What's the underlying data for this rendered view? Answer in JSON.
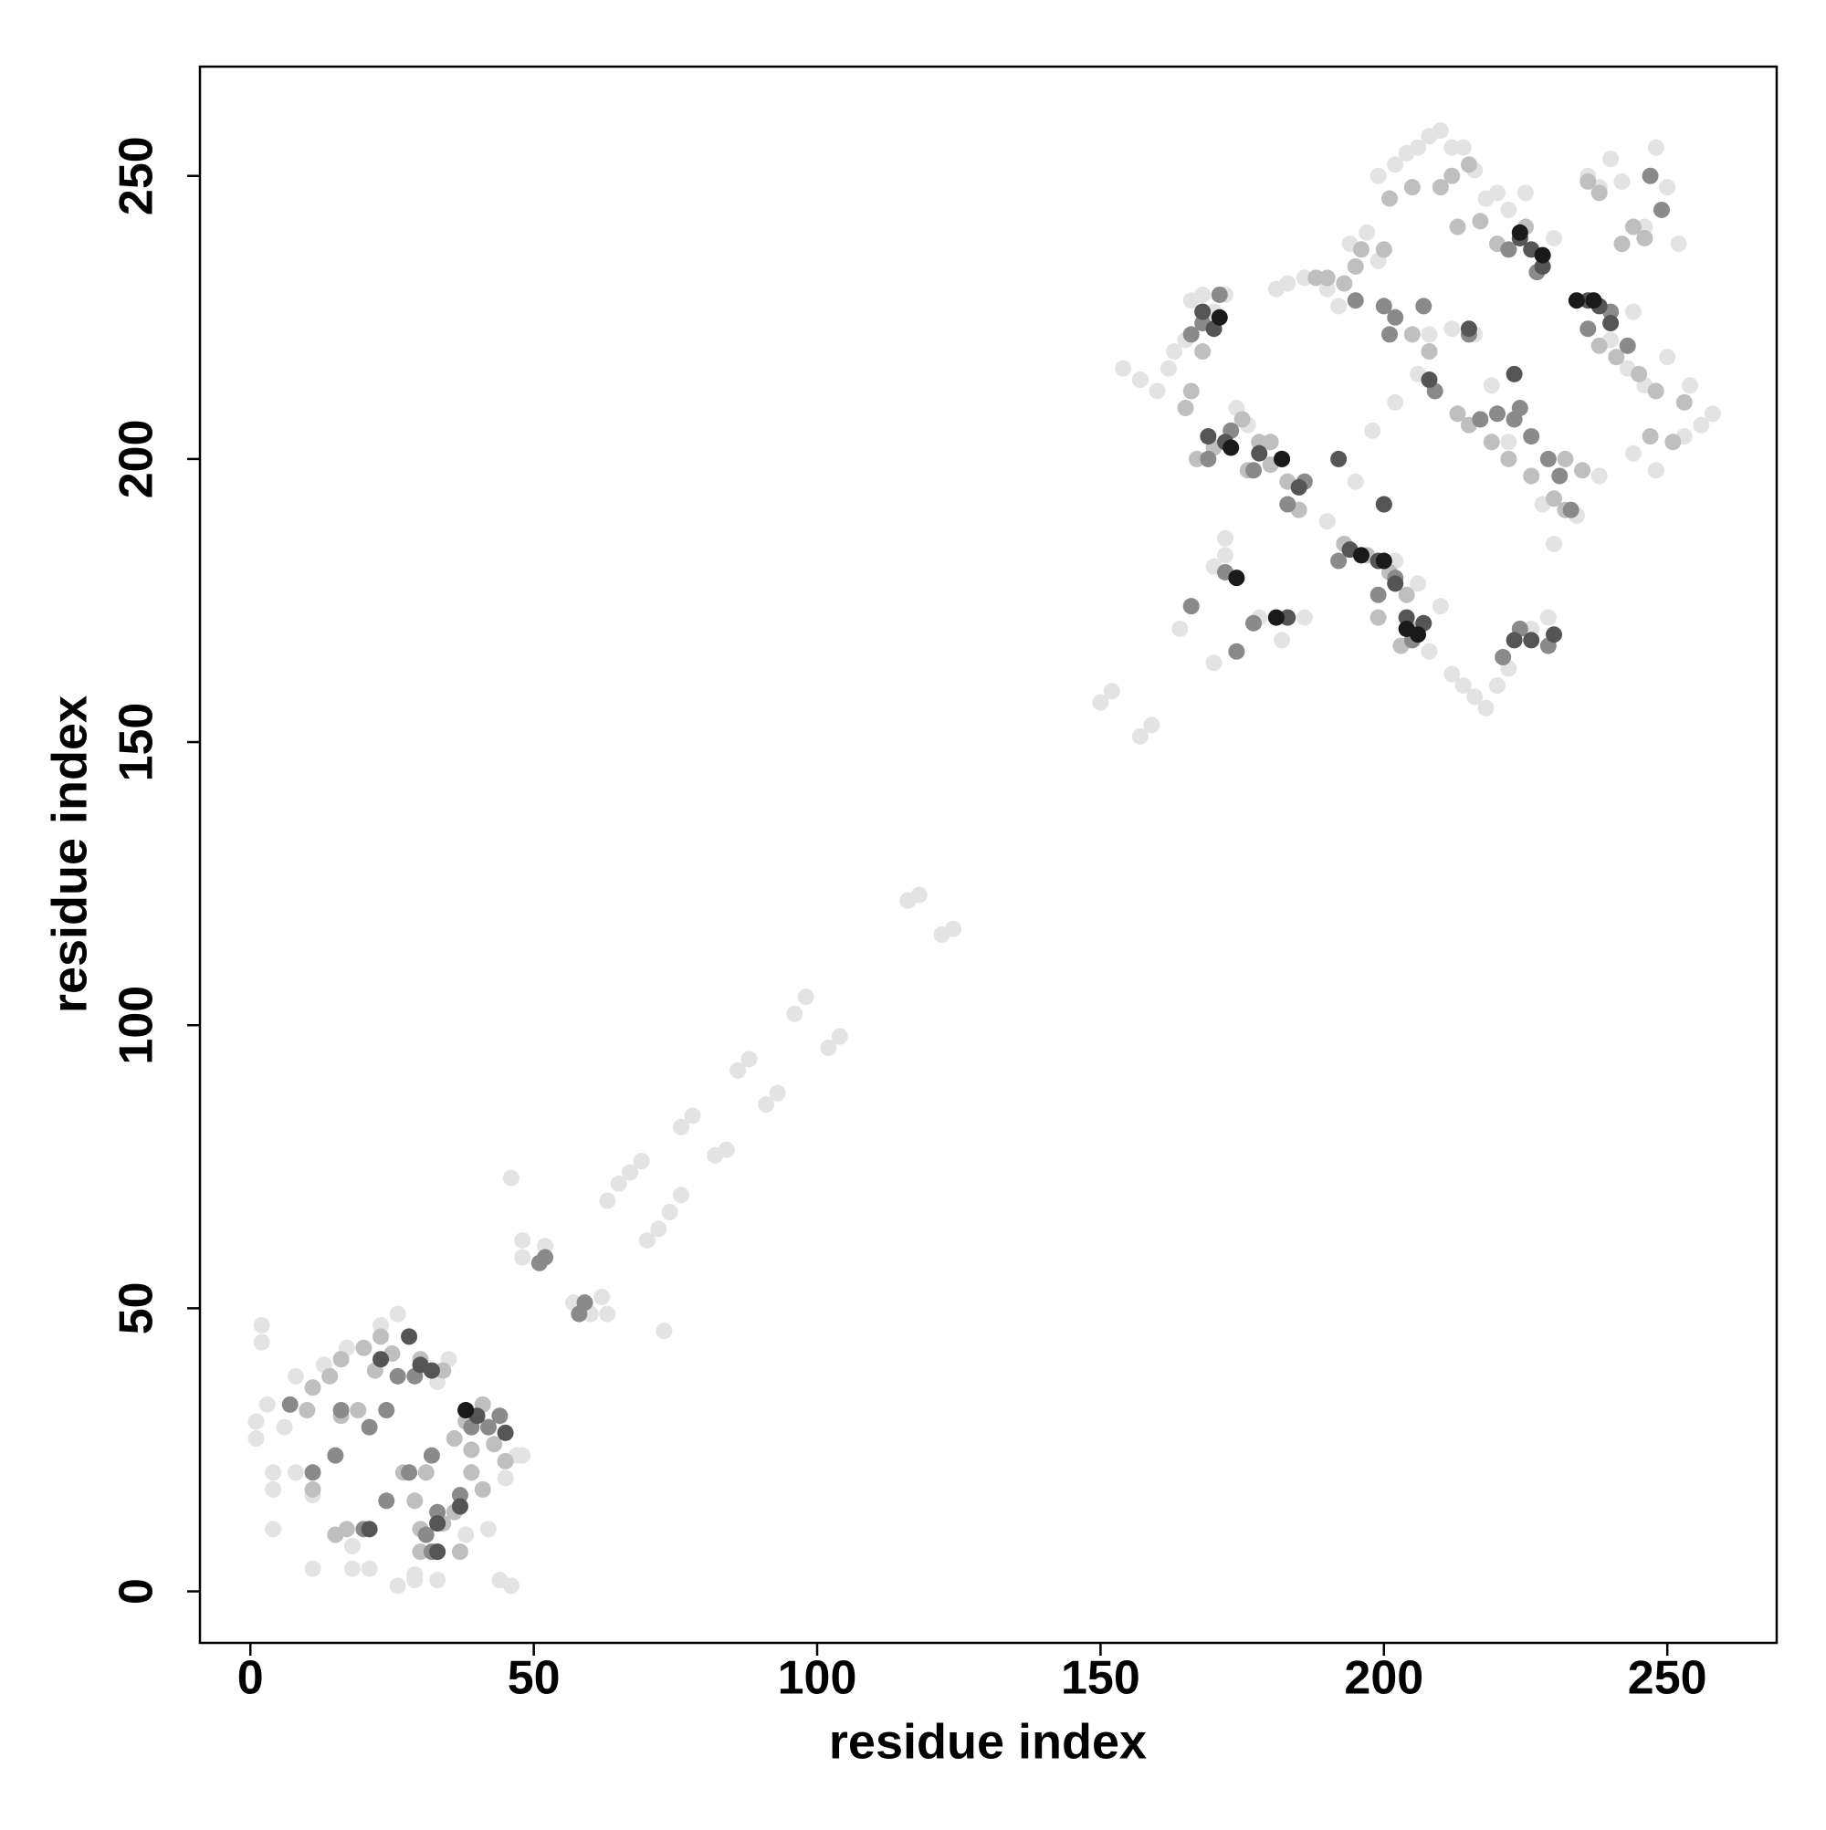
{
  "chart_data": {
    "type": "scatter",
    "xlabel": "residue index",
    "ylabel": "residue index",
    "xlim": [
      -8.9,
      269.3
    ],
    "ylim": [
      -9.1,
      269.3
    ],
    "xticks": [
      0,
      50,
      100,
      150,
      200,
      250
    ],
    "yticks": [
      0,
      50,
      100,
      150,
      200,
      250
    ],
    "series": [
      {
        "color": "#e3e3e3",
        "x": [
          2,
          2,
          1,
          1,
          4,
          4,
          4,
          8,
          11,
          11,
          18,
          18,
          21,
          26,
          29,
          33,
          46,
          44,
          47,
          45,
          48,
          23,
          26,
          33,
          35,
          13,
          17,
          8,
          6,
          3,
          29,
          42,
          38,
          46,
          48,
          48,
          51,
          52,
          57,
          60,
          62,
          63,
          63,
          65,
          67,
          69,
          70,
          72,
          74,
          76,
          73,
          76,
          78,
          82,
          84,
          86,
          88,
          91,
          93,
          96,
          98,
          102,
          104,
          116,
          118,
          122,
          124,
          150,
          152,
          157,
          159,
          154,
          157,
          160,
          162,
          163,
          165,
          166,
          168,
          170,
          172,
          164,
          170,
          172,
          170,
          172,
          178,
          182,
          186,
          181,
          186,
          183,
          190,
          192,
          194,
          197,
          199,
          199,
          202,
          204,
          206,
          208,
          210,
          212,
          214,
          216,
          218,
          220,
          222,
          225,
          230,
          236,
          238,
          240,
          242,
          248,
          250,
          252,
          246,
          244,
          240,
          243,
          246,
          250,
          254,
          256,
          258,
          253,
          248,
          244,
          238,
          234,
          230,
          228,
          222,
          219,
          216,
          212,
          208,
          206,
          202,
          198,
          195,
          190,
          208,
          212,
          214,
          216,
          218,
          220,
          222,
          226,
          229,
          210,
          206,
          202,
          176,
          174
        ],
        "values": [
          47,
          44,
          30,
          27,
          21,
          18,
          11,
          21,
          17,
          4,
          4,
          8,
          4,
          1,
          2,
          2,
          1,
          2,
          24,
          20,
          24,
          47,
          49,
          37,
          41,
          40,
          43,
          38,
          29,
          33,
          3,
          11,
          10,
          73,
          62,
          59,
          58,
          61,
          51,
          49,
          52,
          49,
          69,
          72,
          74,
          76,
          62,
          64,
          67,
          70,
          46,
          82,
          84,
          77,
          78,
          92,
          94,
          86,
          88,
          102,
          105,
          96,
          98,
          122,
          123,
          116,
          117,
          157,
          159,
          151,
          153,
          216,
          214,
          212,
          216,
          219,
          221,
          228,
          229,
          226,
          229,
          170,
          164,
          183,
          181,
          186,
          172,
          168,
          172,
          230,
          232,
          231,
          230,
          227,
          238,
          240,
          235,
          250,
          252,
          254,
          255,
          257,
          258,
          255,
          255,
          251,
          246,
          247,
          244,
          247,
          239,
          250,
          248,
          253,
          249,
          255,
          248,
          238,
          241,
          226,
          221,
          216,
          213,
          218,
          213,
          206,
          208,
          204,
          198,
          201,
          197,
          190,
          185,
          192,
          203,
          213,
          222,
          223,
          222,
          215,
          210,
          205,
          196,
          189,
          166,
          162,
          160,
          158,
          156,
          160,
          163,
          170,
          172,
          174,
          178,
          182,
          206,
          209
        ]
      },
      {
        "color": "#bfbfbf",
        "x": [
          11,
          14,
          16,
          20,
          23,
          25,
          30,
          34,
          36,
          39,
          41,
          36,
          30,
          29,
          27,
          31,
          15,
          17,
          11,
          16,
          19,
          22,
          10,
          39,
          43,
          38,
          41,
          37,
          30,
          34,
          45,
          165,
          166,
          168,
          175,
          178,
          180,
          183,
          185,
          193,
          197,
          201,
          204,
          206,
          199,
          203,
          213,
          215,
          219,
          222,
          226,
          230,
          232,
          232,
          235,
          238,
          241,
          245,
          248,
          247,
          251,
          253,
          242,
          244,
          246,
          238,
          236,
          215,
          212,
          205,
          201,
          225,
          220,
          217,
          195,
          193,
          188,
          196,
          205,
          208,
          167,
          170,
          176,
          180,
          200,
          210,
          213,
          190
        ],
        "values": [
          36,
          38,
          41,
          43,
          45,
          42,
          41,
          39,
          27,
          21,
          18,
          14,
          11,
          16,
          21,
          21,
          10,
          11,
          18,
          31,
          32,
          39,
          32,
          25,
          26,
          30,
          33,
          7,
          7,
          12,
          23,
          209,
          212,
          219,
          207,
          203,
          199,
          196,
          191,
          185,
          183,
          180,
          176,
          170,
          172,
          167,
          208,
          206,
          203,
          200,
          197,
          193,
          191,
          200,
          198,
          220,
          218,
          215,
          212,
          204,
          203,
          210,
          238,
          241,
          239,
          247,
          249,
          252,
          250,
          248,
          246,
          241,
          238,
          242,
          234,
          231,
          232,
          237,
          222,
          219,
          200,
          202,
          198,
          203,
          237,
          248,
          241,
          232
        ]
      },
      {
        "color": "#8a8a8a",
        "x": [
          7,
          11,
          15,
          21,
          24,
          26,
          29,
          28,
          32,
          33,
          37,
          39,
          42,
          44,
          20,
          16,
          24,
          32,
          31,
          51,
          52,
          59,
          58,
          166,
          174,
          177,
          168,
          171,
          166,
          173,
          169,
          177,
          172,
          186,
          183,
          192,
          199,
          205,
          202,
          221,
          224,
          229,
          226,
          223,
          231,
          233,
          236,
          240,
          243,
          249,
          247,
          200,
          202,
          207,
          209,
          220,
          224,
          229,
          200,
          215,
          217,
          222,
          227,
          201,
          195
        ],
        "values": [
          33,
          21,
          24,
          29,
          16,
          38,
          38,
          21,
          24,
          14,
          17,
          29,
          29,
          31,
          11,
          32,
          32,
          7,
          10,
          58,
          59,
          51,
          49,
          174,
          166,
          171,
          224,
          229,
          222,
          205,
          200,
          198,
          180,
          196,
          192,
          182,
          176,
          168,
          179,
          165,
          170,
          167,
          204,
          207,
          197,
          191,
          223,
          226,
          220,
          244,
          250,
          227,
          225,
          227,
          212,
          208,
          209,
          200,
          192,
          222,
          207,
          237,
          233,
          222,
          228
        ]
      },
      {
        "color": "#555555",
        "x": [
          28,
          30,
          32,
          33,
          33,
          37,
          38,
          40,
          45,
          21,
          23,
          168,
          170,
          169,
          172,
          178,
          182,
          185,
          192,
          194,
          199,
          202,
          204,
          207,
          200,
          215,
          223,
          224,
          226,
          228,
          236,
          238,
          240,
          223,
          226,
          230,
          208,
          183
        ],
        "values": [
          45,
          40,
          39,
          7,
          12,
          15,
          32,
          31,
          28,
          11,
          41,
          226,
          223,
          204,
          203,
          201,
          200,
          195,
          200,
          184,
          182,
          178,
          172,
          171,
          192,
          223,
          215,
          239,
          237,
          234,
          228,
          227,
          224,
          168,
          168,
          169,
          214,
          172
        ]
      },
      {
        "color": "#1a1a1a",
        "x": [
          171,
          173,
          182,
          196,
          200,
          204,
          224,
          228,
          234,
          237,
          181,
          206,
          174,
          38
        ],
        "values": [
          225,
          202,
          200,
          183,
          182,
          170,
          240,
          236,
          228,
          228,
          172,
          169,
          179,
          32
        ]
      }
    ]
  }
}
